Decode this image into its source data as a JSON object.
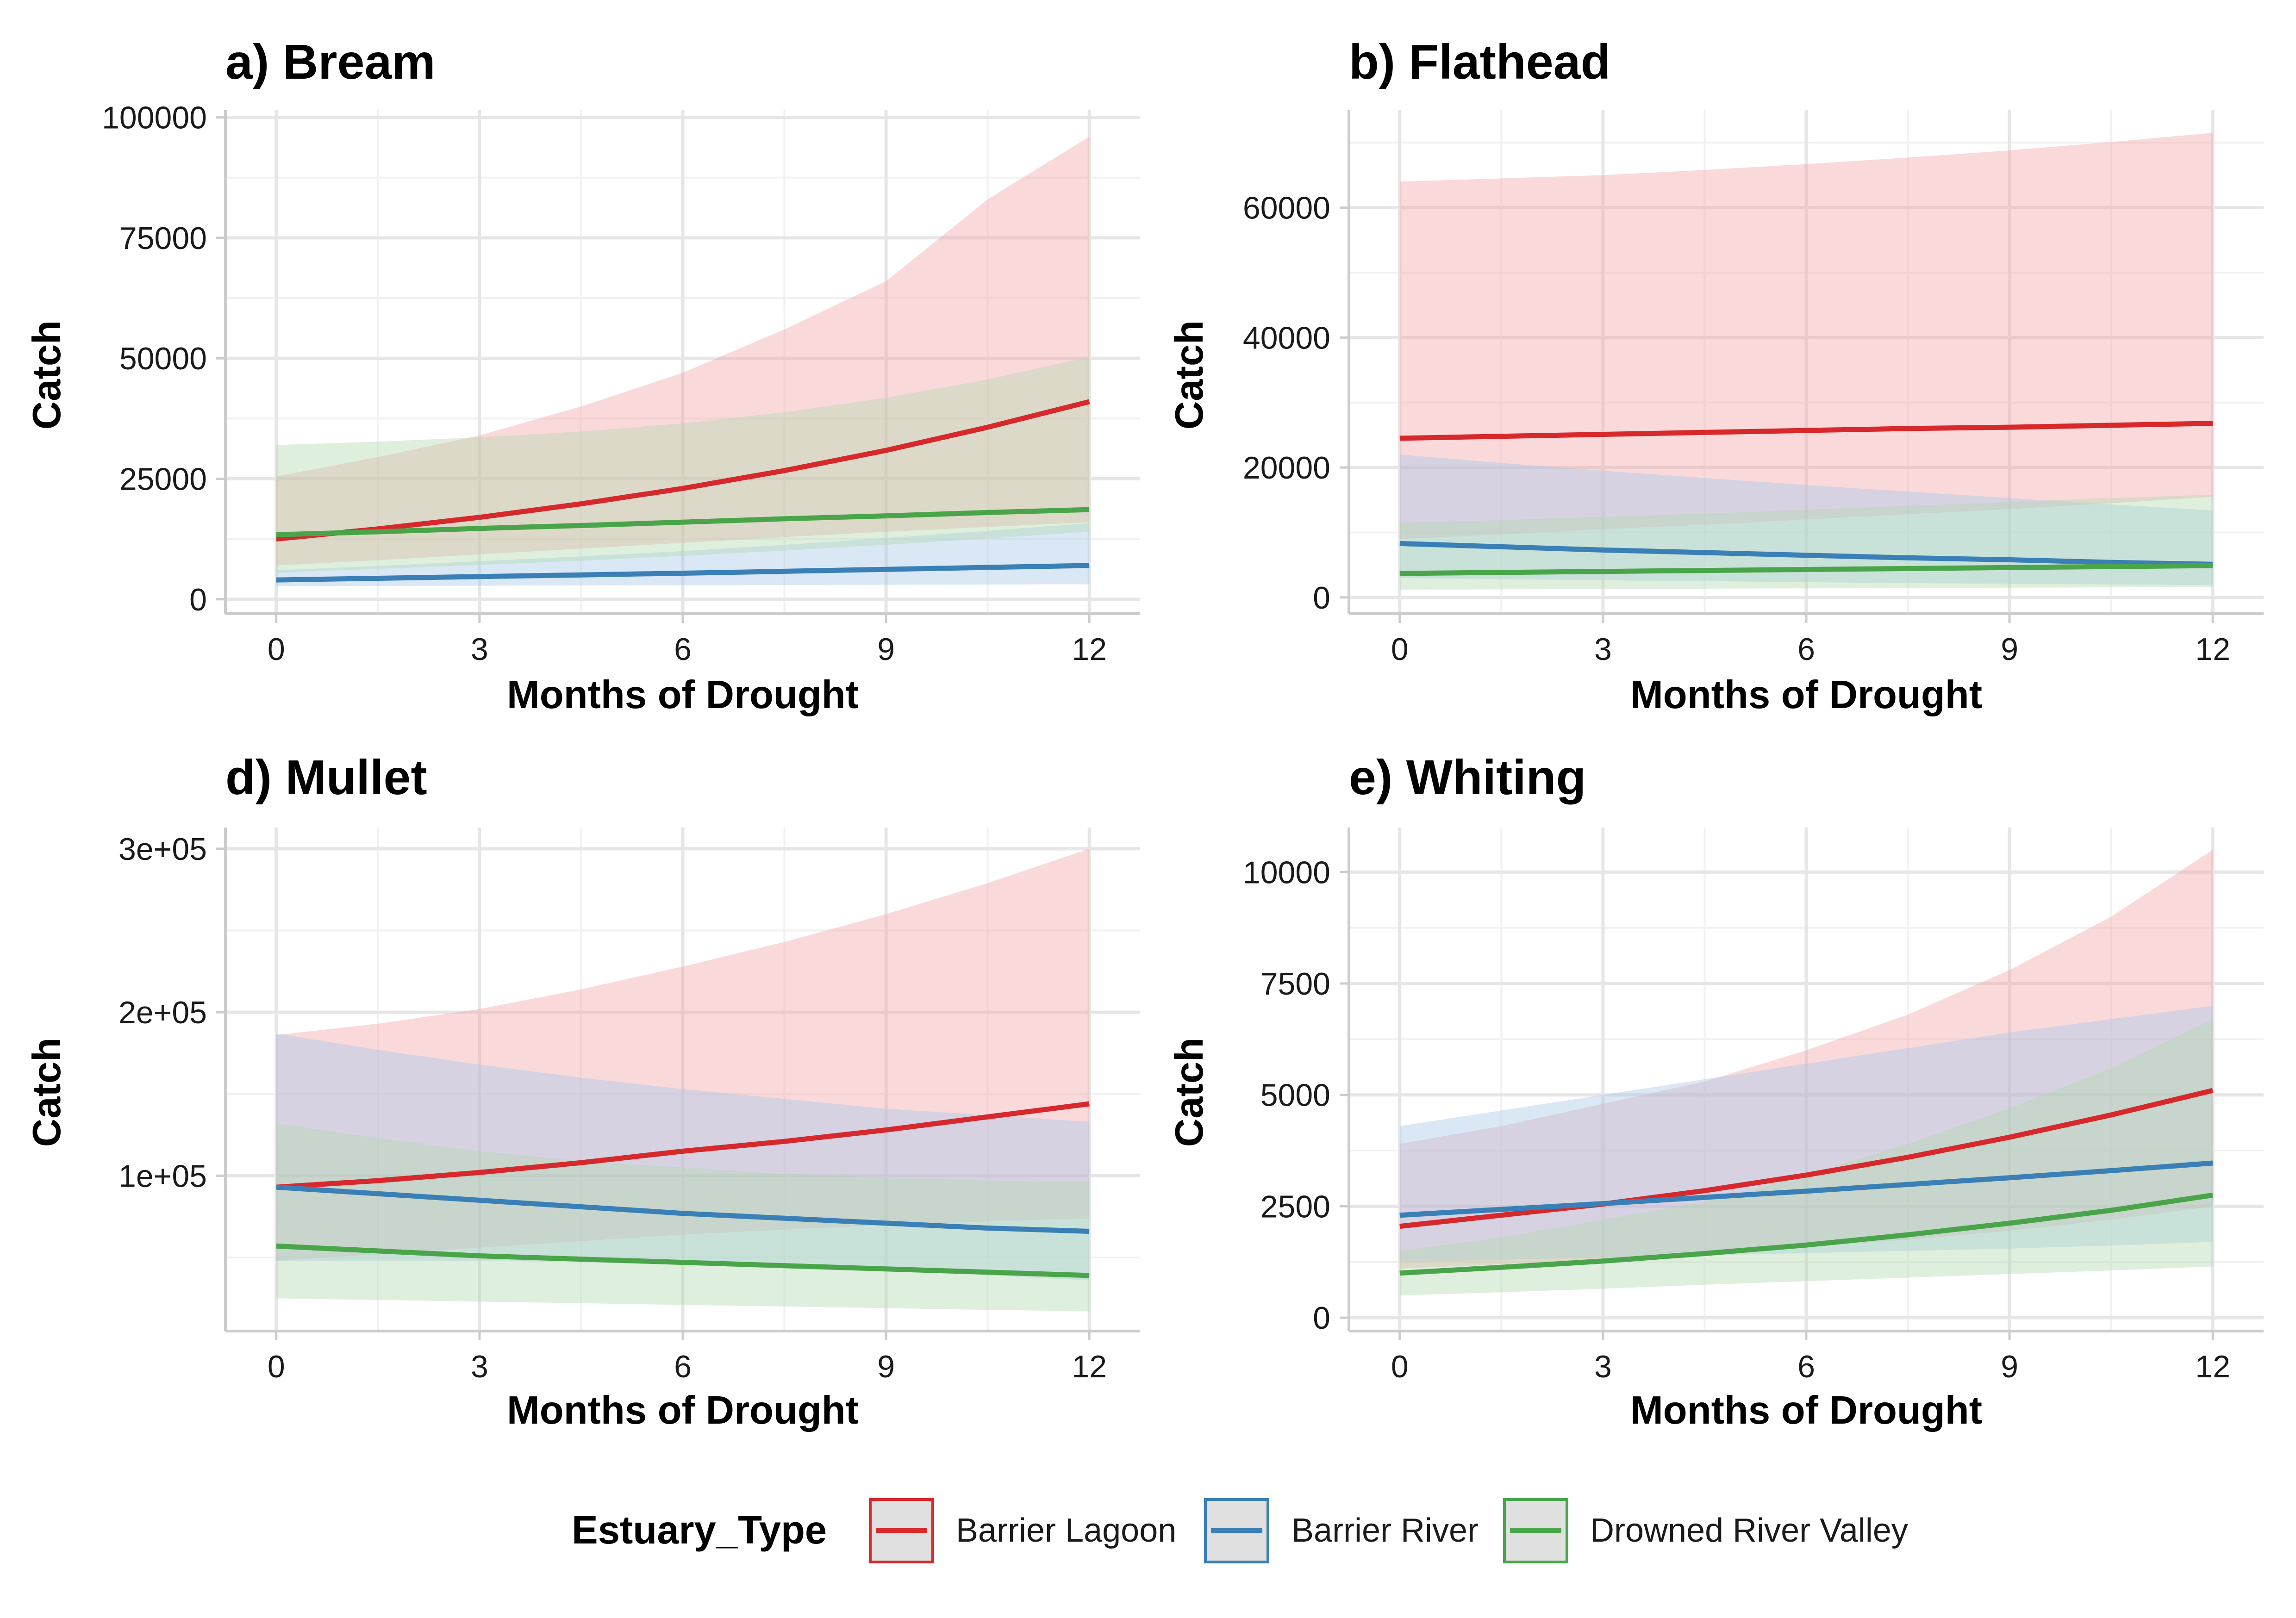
{
  "chart_data": [
    {
      "type": "line",
      "title": "a) Bream",
      "xlabel": "Months of Drought",
      "ylabel": "Catch",
      "xlim": [
        -0.75,
        12.75
      ],
      "ylim": [
        -3000,
        101500
      ],
      "x_ticks": [
        0,
        3,
        6,
        9,
        12
      ],
      "x_tick_labels": [
        "0",
        "3",
        "6",
        "9",
        "12"
      ],
      "y_ticks": [
        0,
        25000,
        50000,
        75000,
        100000
      ],
      "y_tick_labels": [
        "0",
        "25000",
        "50000",
        "75000",
        "100000"
      ],
      "grid": true,
      "x": [
        0,
        1.5,
        3,
        4.5,
        6,
        7.5,
        9,
        10.5,
        12
      ],
      "series": [
        {
          "name": "Barrier Lagoon",
          "color": "#d7282b",
          "fill": "#f4a4a9",
          "values": [
            12500,
            14600,
            17000,
            19800,
            23000,
            26700,
            30900,
            35700,
            41000
          ],
          "lower": [
            7000,
            8100,
            9300,
            10500,
            11700,
            12900,
            14000,
            15000,
            16000
          ],
          "upper": [
            25500,
            29500,
            34000,
            40000,
            47000,
            56000,
            66000,
            83000,
            96000
          ]
        },
        {
          "name": "Barrier River",
          "color": "#3a7fb6",
          "fill": "#a7c9e9",
          "values": [
            4000,
            4350,
            4700,
            5050,
            5400,
            5800,
            6200,
            6600,
            7000
          ],
          "lower": [
            2700,
            2750,
            2800,
            2850,
            2900,
            2950,
            3000,
            3050,
            3100
          ],
          "upper": [
            6000,
            6900,
            7900,
            8900,
            10000,
            11300,
            12700,
            14200,
            15800
          ]
        },
        {
          "name": "Drowned River Valley",
          "color": "#4aa54a",
          "fill": "#b2d9b1",
          "values": [
            13400,
            14000,
            14700,
            15300,
            16000,
            16700,
            17300,
            18000,
            18600
          ],
          "lower": [
            5500,
            6300,
            7100,
            8000,
            9000,
            10100,
            11300,
            12600,
            14000
          ],
          "upper": [
            32000,
            32700,
            33600,
            34800,
            36500,
            38800,
            41800,
            45600,
            50300
          ]
        }
      ]
    },
    {
      "type": "line",
      "title": "b) Flathead",
      "xlabel": "Months of Drought",
      "ylabel": "Catch",
      "xlim": [
        -0.75,
        12.75
      ],
      "ylim": [
        -2500,
        75000
      ],
      "x_ticks": [
        0,
        3,
        6,
        9,
        12
      ],
      "x_tick_labels": [
        "0",
        "3",
        "6",
        "9",
        "12"
      ],
      "y_ticks": [
        0,
        20000,
        40000,
        60000
      ],
      "y_tick_labels": [
        "0",
        "20000",
        "40000",
        "60000"
      ],
      "grid": true,
      "x": [
        0,
        1.5,
        3,
        4.5,
        6,
        7.5,
        9,
        10.5,
        12
      ],
      "series": [
        {
          "name": "Barrier Lagoon",
          "color": "#d7282b",
          "fill": "#f4a4a9",
          "values": [
            24500,
            24800,
            25100,
            25400,
            25700,
            26000,
            26200,
            26500,
            26800
          ],
          "lower": [
            9000,
            9700,
            10500,
            11200,
            12000,
            12800,
            13600,
            14500,
            15500
          ],
          "upper": [
            64000,
            64500,
            65000,
            65800,
            66700,
            67700,
            68800,
            70100,
            71500
          ]
        },
        {
          "name": "Barrier River",
          "color": "#3a7fb6",
          "fill": "#a7c9e9",
          "values": [
            8300,
            7800,
            7300,
            6900,
            6500,
            6100,
            5800,
            5400,
            5100
          ],
          "lower": [
            3000,
            2800,
            2650,
            2500,
            2350,
            2200,
            2100,
            2000,
            1900
          ],
          "upper": [
            22000,
            20700,
            19500,
            18400,
            17300,
            16300,
            15300,
            14300,
            13400
          ]
        },
        {
          "name": "Drowned River Valley",
          "color": "#4aa54a",
          "fill": "#b2d9b1",
          "values": [
            3700,
            3850,
            4000,
            4150,
            4300,
            4450,
            4600,
            4750,
            4900
          ],
          "lower": [
            1200,
            1250,
            1300,
            1350,
            1400,
            1450,
            1500,
            1550,
            1600
          ],
          "upper": [
            11500,
            11900,
            12400,
            12900,
            13500,
            14100,
            14700,
            15300,
            15800
          ]
        }
      ]
    },
    {
      "type": "line",
      "title": "d) Mullet",
      "xlabel": "Months of Drought",
      "ylabel": "Catch",
      "xlim": [
        -0.75,
        12.75
      ],
      "ylim": [
        5000,
        313000
      ],
      "x_ticks": [
        0,
        3,
        6,
        9,
        12
      ],
      "x_tick_labels": [
        "0",
        "3",
        "6",
        "9",
        "12"
      ],
      "y_ticks": [
        100000,
        200000,
        300000
      ],
      "y_tick_labels": [
        "1e+05",
        "2e+05",
        "3e+05"
      ],
      "grid": true,
      "x": [
        0,
        1.5,
        3,
        4.5,
        6,
        7.5,
        9,
        10.5,
        12
      ],
      "series": [
        {
          "name": "Barrier Lagoon",
          "color": "#d7282b",
          "fill": "#f4a4a9",
          "values": [
            93000,
            97000,
            102000,
            108000,
            115000,
            121000,
            128000,
            136000,
            144000
          ],
          "lower": [
            48000,
            52000,
            56000,
            60000,
            64000,
            67000,
            70000,
            72000,
            74000
          ],
          "upper": [
            186000,
            193000,
            202000,
            214000,
            228000,
            243000,
            260000,
            279000,
            300000
          ]
        },
        {
          "name": "Barrier River",
          "color": "#3a7fb6",
          "fill": "#a7c9e9",
          "values": [
            93000,
            89000,
            85000,
            81000,
            77000,
            74000,
            71000,
            68000,
            66000
          ],
          "lower": [
            48000,
            48000,
            48000,
            47000,
            46000,
            44000,
            42000,
            39000,
            36000
          ],
          "upper": [
            187000,
            177000,
            168000,
            160000,
            153000,
            147000,
            141000,
            137000,
            133000
          ]
        },
        {
          "name": "Drowned River Valley",
          "color": "#4aa54a",
          "fill": "#b2d9b1",
          "values": [
            57000,
            54000,
            51000,
            49000,
            47000,
            45000,
            43000,
            41000,
            39000
          ],
          "lower": [
            25000,
            24000,
            23000,
            22000,
            21000,
            20000,
            19000,
            18000,
            17000
          ],
          "upper": [
            132000,
            123000,
            115000,
            109000,
            105000,
            101000,
            99000,
            97000,
            96000
          ]
        }
      ]
    },
    {
      "type": "line",
      "title": "e) Whiting",
      "xlabel": "Months of Drought",
      "ylabel": "Catch",
      "xlim": [
        -0.75,
        12.75
      ],
      "ylim": [
        -300,
        11000
      ],
      "x_ticks": [
        0,
        3,
        6,
        9,
        12
      ],
      "x_tick_labels": [
        "0",
        "3",
        "6",
        "9",
        "12"
      ],
      "y_ticks": [
        0,
        2500,
        5000,
        7500,
        10000
      ],
      "y_tick_labels": [
        "0",
        "2500",
        "5000",
        "7500",
        "10000"
      ],
      "grid": true,
      "x": [
        0,
        1.5,
        3,
        4.5,
        6,
        7.5,
        9,
        10.5,
        12
      ],
      "series": [
        {
          "name": "Barrier Lagoon",
          "color": "#d7282b",
          "fill": "#f4a4a9",
          "values": [
            2050,
            2300,
            2550,
            2850,
            3200,
            3600,
            4050,
            4550,
            5100
          ],
          "lower": [
            1100,
            1200,
            1300,
            1400,
            1600,
            1750,
            1950,
            2200,
            2500
          ],
          "upper": [
            3900,
            4300,
            4800,
            5300,
            6000,
            6800,
            7800,
            9000,
            10500
          ]
        },
        {
          "name": "Barrier River",
          "color": "#3a7fb6",
          "fill": "#a7c9e9",
          "values": [
            2300,
            2430,
            2560,
            2700,
            2840,
            2990,
            3140,
            3300,
            3470
          ],
          "lower": [
            1250,
            1300,
            1350,
            1400,
            1450,
            1500,
            1550,
            1620,
            1700
          ],
          "upper": [
            4300,
            4650,
            5000,
            5350,
            5700,
            6050,
            6400,
            6700,
            7000
          ]
        },
        {
          "name": "Drowned River Valley",
          "color": "#4aa54a",
          "fill": "#b2d9b1",
          "values": [
            1000,
            1130,
            1270,
            1440,
            1630,
            1860,
            2120,
            2410,
            2750
          ],
          "lower": [
            500,
            570,
            650,
            740,
            820,
            900,
            980,
            1060,
            1150
          ],
          "upper": [
            1500,
            1800,
            2200,
            2600,
            3200,
            3900,
            4700,
            5600,
            6700
          ]
        }
      ]
    }
  ],
  "legend": {
    "title": "Estuary_Type",
    "position": "bottom",
    "items": [
      {
        "label": "Barrier Lagoon",
        "color": "#d7282b"
      },
      {
        "label": "Barrier River",
        "color": "#3a7fb6"
      },
      {
        "label": "Drowned River Valley",
        "color": "#4aa54a"
      }
    ]
  },
  "colors": {
    "grid_major": "#e6e6e6",
    "grid_minor": "#f1f1f1",
    "axis_line": "#cccccc",
    "legend_key_bg": "#e0e0e0"
  }
}
